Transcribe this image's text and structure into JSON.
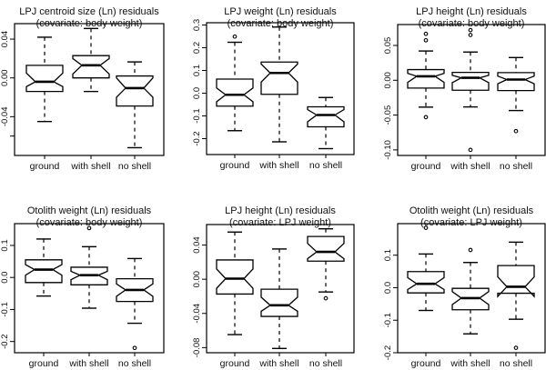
{
  "chart_data": [
    {
      "type": "boxplot",
      "title": [
        "LPJ centroid size (Ln) residuals",
        "(covariate: body weight)"
      ],
      "categories": [
        "ground",
        "with shell",
        "no shell"
      ],
      "ylim": [
        -0.08,
        0.056
      ],
      "ticks": [
        0.04,
        0.0,
        -0.04,
        -0.06
      ],
      "tick_labels": [
        "0.04",
        "0.00",
        "-0.04",
        ""
      ],
      "boxes": [
        {
          "low": -0.045,
          "q1": -0.014,
          "median": -0.004,
          "q3": 0.013,
          "high": 0.042,
          "notch": [
            -0.009,
            0.005
          ],
          "outliers": []
        },
        {
          "low": -0.014,
          "q1": 0.0,
          "median": 0.013,
          "q3": 0.023,
          "high": 0.051,
          "notch": [
            0.004,
            0.02
          ],
          "outliers": []
        },
        {
          "low": -0.072,
          "q1": -0.029,
          "median": -0.0105,
          "q3": 0.002,
          "high": 0.0165,
          "notch": [
            -0.02,
            0.0
          ],
          "outliers": []
        }
      ]
    },
    {
      "type": "boxplot",
      "title": [
        "LPJ weight (Ln) residuals",
        "(covariate: body weight)"
      ],
      "categories": [
        "ground",
        "with shell",
        "no shell"
      ],
      "ylim": [
        -0.27,
        0.31
      ],
      "ticks": [
        0.3,
        0.2,
        0.1,
        0.0,
        -0.1,
        -0.2
      ],
      "tick_labels": [
        "0.3",
        "0.2",
        "0.1",
        "0.0",
        "-0.1",
        "-0.2"
      ],
      "boxes": [
        {
          "low": -0.165,
          "q1": -0.057,
          "median": -0.007,
          "q3": 0.062,
          "high": 0.224,
          "notch": [
            -0.038,
            0.023
          ],
          "outliers": [
            0.249
          ]
        },
        {
          "low": -0.214,
          "q1": -0.005,
          "median": 0.089,
          "q3": 0.137,
          "high": 0.291,
          "notch": [
            0.049,
            0.128
          ],
          "outliers": []
        },
        {
          "low": -0.244,
          "q1": -0.148,
          "median": -0.096,
          "q3": -0.06,
          "high": -0.019,
          "notch": [
            -0.126,
            -0.072
          ],
          "outliers": []
        }
      ]
    },
    {
      "type": "boxplot",
      "title": [
        "LPJ height (Ln) residuals",
        "(covariate: body weight)"
      ],
      "categories": [
        "ground",
        "with shell",
        "no shell"
      ],
      "ylim": [
        -0.108,
        0.08
      ],
      "ticks": [
        0.05,
        0.0,
        -0.05,
        -0.1
      ],
      "tick_labels": [
        "0.05",
        "0.00",
        "-0.05",
        "-0.10"
      ],
      "boxes": [
        {
          "low": -0.0386,
          "q1": -0.0112,
          "median": 0.0057,
          "q3": 0.0153,
          "high": 0.042,
          "notch": [
            -0.003,
            0.01
          ],
          "outliers": [
            0.0666,
            0.0574,
            -0.053
          ]
        },
        {
          "low": -0.0383,
          "q1": -0.0143,
          "median": 0.0035,
          "q3": 0.0113,
          "high": 0.0405,
          "notch": [
            -0.0034,
            0.007
          ],
          "outliers": [
            0.072,
            0.065,
            -0.1
          ]
        },
        {
          "low": -0.0435,
          "q1": -0.0148,
          "median": 0.001,
          "q3": 0.011,
          "high": 0.0326,
          "notch": [
            -0.005,
            0.006
          ],
          "outliers": [
            -0.073
          ]
        }
      ]
    },
    {
      "type": "boxplot",
      "title": [
        "Otolith weight (Ln) residuals",
        "(covariate: body weight)"
      ],
      "categories": [
        "ground",
        "with shell",
        "no shell"
      ],
      "ylim": [
        -0.235,
        0.168
      ],
      "ticks": [
        0.1,
        0.0,
        -0.1,
        -0.2
      ],
      "tick_labels": [
        "0.1",
        "0.0",
        "-0.1",
        "-0.2"
      ],
      "boxes": [
        {
          "low": -0.058,
          "q1": -0.016,
          "median": 0.0246,
          "q3": 0.055,
          "high": 0.12,
          "notch": [
            0.007,
            0.04
          ],
          "outliers": []
        },
        {
          "low": -0.096,
          "q1": -0.023,
          "median": 0.007,
          "q3": 0.032,
          "high": 0.096,
          "notch": [
            -0.007,
            0.019
          ],
          "outliers": [
            0.154
          ]
        },
        {
          "low": -0.143,
          "q1": -0.075,
          "median": -0.039,
          "q3": -0.004,
          "high": 0.059,
          "notch": [
            -0.059,
            -0.02
          ],
          "outliers": [
            -0.22
          ]
        }
      ]
    },
    {
      "type": "boxplot",
      "title": [
        "LPJ height (Ln) residuals",
        "(covariate: LPJ weight)"
      ],
      "categories": [
        "ground",
        "with shell",
        "no shell"
      ],
      "ylim": [
        -0.086,
        0.064
      ],
      "ticks": [
        0.04,
        0.0,
        -0.04,
        -0.08
      ],
      "tick_labels": [
        "0.04",
        "0.00",
        "-0.04",
        "-0.08"
      ],
      "boxes": [
        {
          "low": -0.0648,
          "q1": -0.0173,
          "median": 0.0007,
          "q3": 0.0226,
          "high": 0.0552,
          "notch": [
            -0.0106,
            0.012
          ],
          "outliers": []
        },
        {
          "low": -0.081,
          "q1": -0.0435,
          "median": -0.0305,
          "q3": -0.0117,
          "high": 0.0354,
          "notch": [
            -0.0375,
            -0.021
          ],
          "outliers": []
        },
        {
          "low": -0.0149,
          "q1": 0.0212,
          "median": 0.032,
          "q3": 0.05,
          "high": 0.059,
          "notch": [
            0.024,
            0.042
          ],
          "outliers": [
            -0.0223
          ]
        }
      ]
    },
    {
      "type": "boxplot",
      "title": [
        "Otolith weight (Ln) residuals",
        "(covariate: LPJ weight)"
      ],
      "categories": [
        "ground",
        "with shell",
        "no shell"
      ],
      "ylim": [
        -0.2,
        0.197
      ],
      "ticks": [
        0.1,
        0.0,
        -0.1,
        -0.2
      ],
      "tick_labels": [
        "0.1",
        "0.0",
        "-0.1",
        "-0.2"
      ],
      "boxes": [
        {
          "low": -0.07,
          "q1": -0.016,
          "median": 0.012,
          "q3": 0.0496,
          "high": 0.1036,
          "notch": [
            -0.0056,
            0.031
          ],
          "outliers": [
            0.184
          ]
        },
        {
          "low": -0.142,
          "q1": -0.068,
          "median": -0.032,
          "q3": -0.002,
          "high": 0.0775,
          "notch": [
            -0.052,
            -0.012
          ],
          "outliers": [
            0.116
          ]
        },
        {
          "low": -0.097,
          "q1": -0.017,
          "median": 0.003,
          "q3": 0.068,
          "high": 0.14,
          "notch": [
            -0.027,
            0.033
          ],
          "outliers": [
            -0.185
          ]
        }
      ]
    }
  ]
}
